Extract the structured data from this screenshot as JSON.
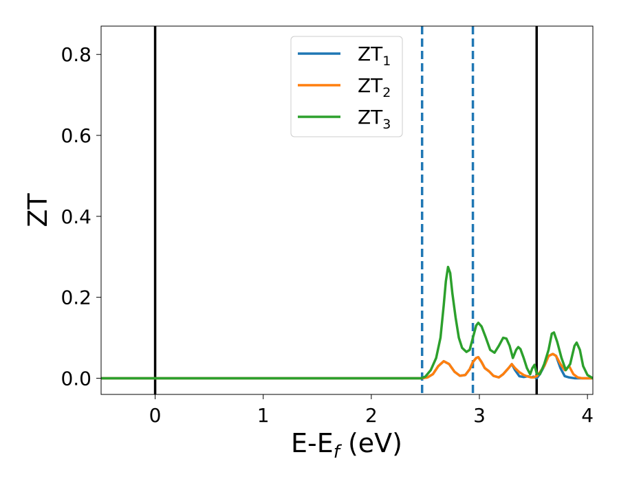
{
  "chart_data": {
    "type": "line",
    "xlabel": "E-E",
    "xlabel_sub": "f",
    "xlabel_unit": " (eV)",
    "ylabel": "ZT",
    "xlim": [
      -0.5,
      4.05
    ],
    "ylim": [
      -0.04,
      0.87
    ],
    "x_ticks": [
      0,
      1,
      2,
      3,
      4
    ],
    "x_tick_labels": [
      "0",
      "1",
      "2",
      "3",
      "4"
    ],
    "y_ticks": [
      0.0,
      0.2,
      0.4,
      0.6,
      0.8
    ],
    "y_tick_labels": [
      "0.0",
      "0.2",
      "0.4",
      "0.6",
      "0.8"
    ],
    "grid": false,
    "legend_position": "top-center",
    "series": [
      {
        "name": "ZT",
        "sub": "1",
        "color": "#1f77b4",
        "points": [
          [
            -0.5,
            0
          ],
          [
            2.47,
            0
          ],
          [
            2.52,
            0.002
          ],
          [
            2.57,
            0.01
          ],
          [
            2.62,
            0.03
          ],
          [
            2.67,
            0.042
          ],
          [
            2.72,
            0.035
          ],
          [
            2.77,
            0.016
          ],
          [
            2.82,
            0.006
          ],
          [
            2.87,
            0.008
          ],
          [
            2.91,
            0.022
          ],
          [
            2.94,
            0.04
          ],
          [
            2.97,
            0.05
          ],
          [
            2.99,
            0.052
          ],
          [
            3.02,
            0.04
          ],
          [
            3.05,
            0.025
          ],
          [
            3.09,
            0.017
          ],
          [
            3.13,
            0.006
          ],
          [
            3.18,
            0.002
          ],
          [
            3.22,
            0.01
          ],
          [
            3.27,
            0.025
          ],
          [
            3.3,
            0.035
          ],
          [
            3.33,
            0.02
          ],
          [
            3.37,
            0.005
          ],
          [
            3.41,
            0.003
          ],
          [
            3.45,
            0.005
          ],
          [
            3.48,
            0.002
          ],
          [
            3.5,
            0.004
          ],
          [
            3.53,
            0.0
          ],
          [
            3.56,
            0.01
          ],
          [
            3.6,
            0.03
          ],
          [
            3.64,
            0.055
          ],
          [
            3.68,
            0.06
          ],
          [
            3.71,
            0.055
          ],
          [
            3.75,
            0.025
          ],
          [
            3.79,
            0.005
          ],
          [
            3.83,
            0.002
          ],
          [
            3.88,
            0.0
          ],
          [
            4.05,
            0.0
          ]
        ]
      },
      {
        "name": "ZT",
        "sub": "2",
        "color": "#ff7f0e",
        "points": [
          [
            -0.5,
            0
          ],
          [
            2.47,
            0
          ],
          [
            2.52,
            0.002
          ],
          [
            2.57,
            0.01
          ],
          [
            2.62,
            0.03
          ],
          [
            2.67,
            0.042
          ],
          [
            2.72,
            0.035
          ],
          [
            2.77,
            0.016
          ],
          [
            2.82,
            0.006
          ],
          [
            2.87,
            0.008
          ],
          [
            2.91,
            0.022
          ],
          [
            2.94,
            0.04
          ],
          [
            2.97,
            0.05
          ],
          [
            2.99,
            0.052
          ],
          [
            3.02,
            0.04
          ],
          [
            3.05,
            0.025
          ],
          [
            3.09,
            0.017
          ],
          [
            3.13,
            0.006
          ],
          [
            3.18,
            0.002
          ],
          [
            3.22,
            0.01
          ],
          [
            3.27,
            0.025
          ],
          [
            3.3,
            0.035
          ],
          [
            3.33,
            0.025
          ],
          [
            3.37,
            0.015
          ],
          [
            3.41,
            0.008
          ],
          [
            3.45,
            0.004
          ],
          [
            3.48,
            0.002
          ],
          [
            3.5,
            0.002
          ],
          [
            3.53,
            0.005
          ],
          [
            3.56,
            0.015
          ],
          [
            3.6,
            0.03
          ],
          [
            3.64,
            0.055
          ],
          [
            3.68,
            0.06
          ],
          [
            3.71,
            0.055
          ],
          [
            3.75,
            0.035
          ],
          [
            3.79,
            0.02
          ],
          [
            3.83,
            0.03
          ],
          [
            3.87,
            0.01
          ],
          [
            3.91,
            0.002
          ],
          [
            3.95,
            0.0
          ],
          [
            4.05,
            0.0
          ]
        ]
      },
      {
        "name": "ZT",
        "sub": "3",
        "color": "#2ca02c",
        "points": [
          [
            -0.5,
            0
          ],
          [
            2.46,
            0
          ],
          [
            2.5,
            0.004
          ],
          [
            2.55,
            0.02
          ],
          [
            2.6,
            0.05
          ],
          [
            2.64,
            0.1
          ],
          [
            2.67,
            0.18
          ],
          [
            2.69,
            0.24
          ],
          [
            2.71,
            0.275
          ],
          [
            2.73,
            0.26
          ],
          [
            2.75,
            0.21
          ],
          [
            2.78,
            0.15
          ],
          [
            2.81,
            0.1
          ],
          [
            2.84,
            0.075
          ],
          [
            2.88,
            0.065
          ],
          [
            2.91,
            0.07
          ],
          [
            2.94,
            0.1
          ],
          [
            2.97,
            0.13
          ],
          [
            2.99,
            0.137
          ],
          [
            3.02,
            0.128
          ],
          [
            3.06,
            0.1
          ],
          [
            3.1,
            0.07
          ],
          [
            3.14,
            0.063
          ],
          [
            3.18,
            0.08
          ],
          [
            3.22,
            0.1
          ],
          [
            3.25,
            0.098
          ],
          [
            3.28,
            0.08
          ],
          [
            3.31,
            0.05
          ],
          [
            3.34,
            0.07
          ],
          [
            3.36,
            0.077
          ],
          [
            3.38,
            0.072
          ],
          [
            3.41,
            0.05
          ],
          [
            3.44,
            0.025
          ],
          [
            3.47,
            0.01
          ],
          [
            3.49,
            0.025
          ],
          [
            3.51,
            0.033
          ],
          [
            3.53,
            0.012
          ],
          [
            3.56,
            0.01
          ],
          [
            3.6,
            0.035
          ],
          [
            3.64,
            0.07
          ],
          [
            3.67,
            0.11
          ],
          [
            3.69,
            0.113
          ],
          [
            3.72,
            0.09
          ],
          [
            3.76,
            0.05
          ],
          [
            3.8,
            0.02
          ],
          [
            3.84,
            0.035
          ],
          [
            3.88,
            0.08
          ],
          [
            3.9,
            0.088
          ],
          [
            3.93,
            0.07
          ],
          [
            3.96,
            0.03
          ],
          [
            4.0,
            0.008
          ],
          [
            4.05,
            0.0
          ]
        ]
      }
    ],
    "vlines": [
      {
        "x": 0.0,
        "style": "solid",
        "color": "#000000"
      },
      {
        "x": 3.53,
        "style": "solid",
        "color": "#000000"
      },
      {
        "x": 2.47,
        "style": "dashed",
        "color": "#1f77b4"
      },
      {
        "x": 2.94,
        "style": "dashed",
        "color": "#1f77b4"
      }
    ]
  }
}
